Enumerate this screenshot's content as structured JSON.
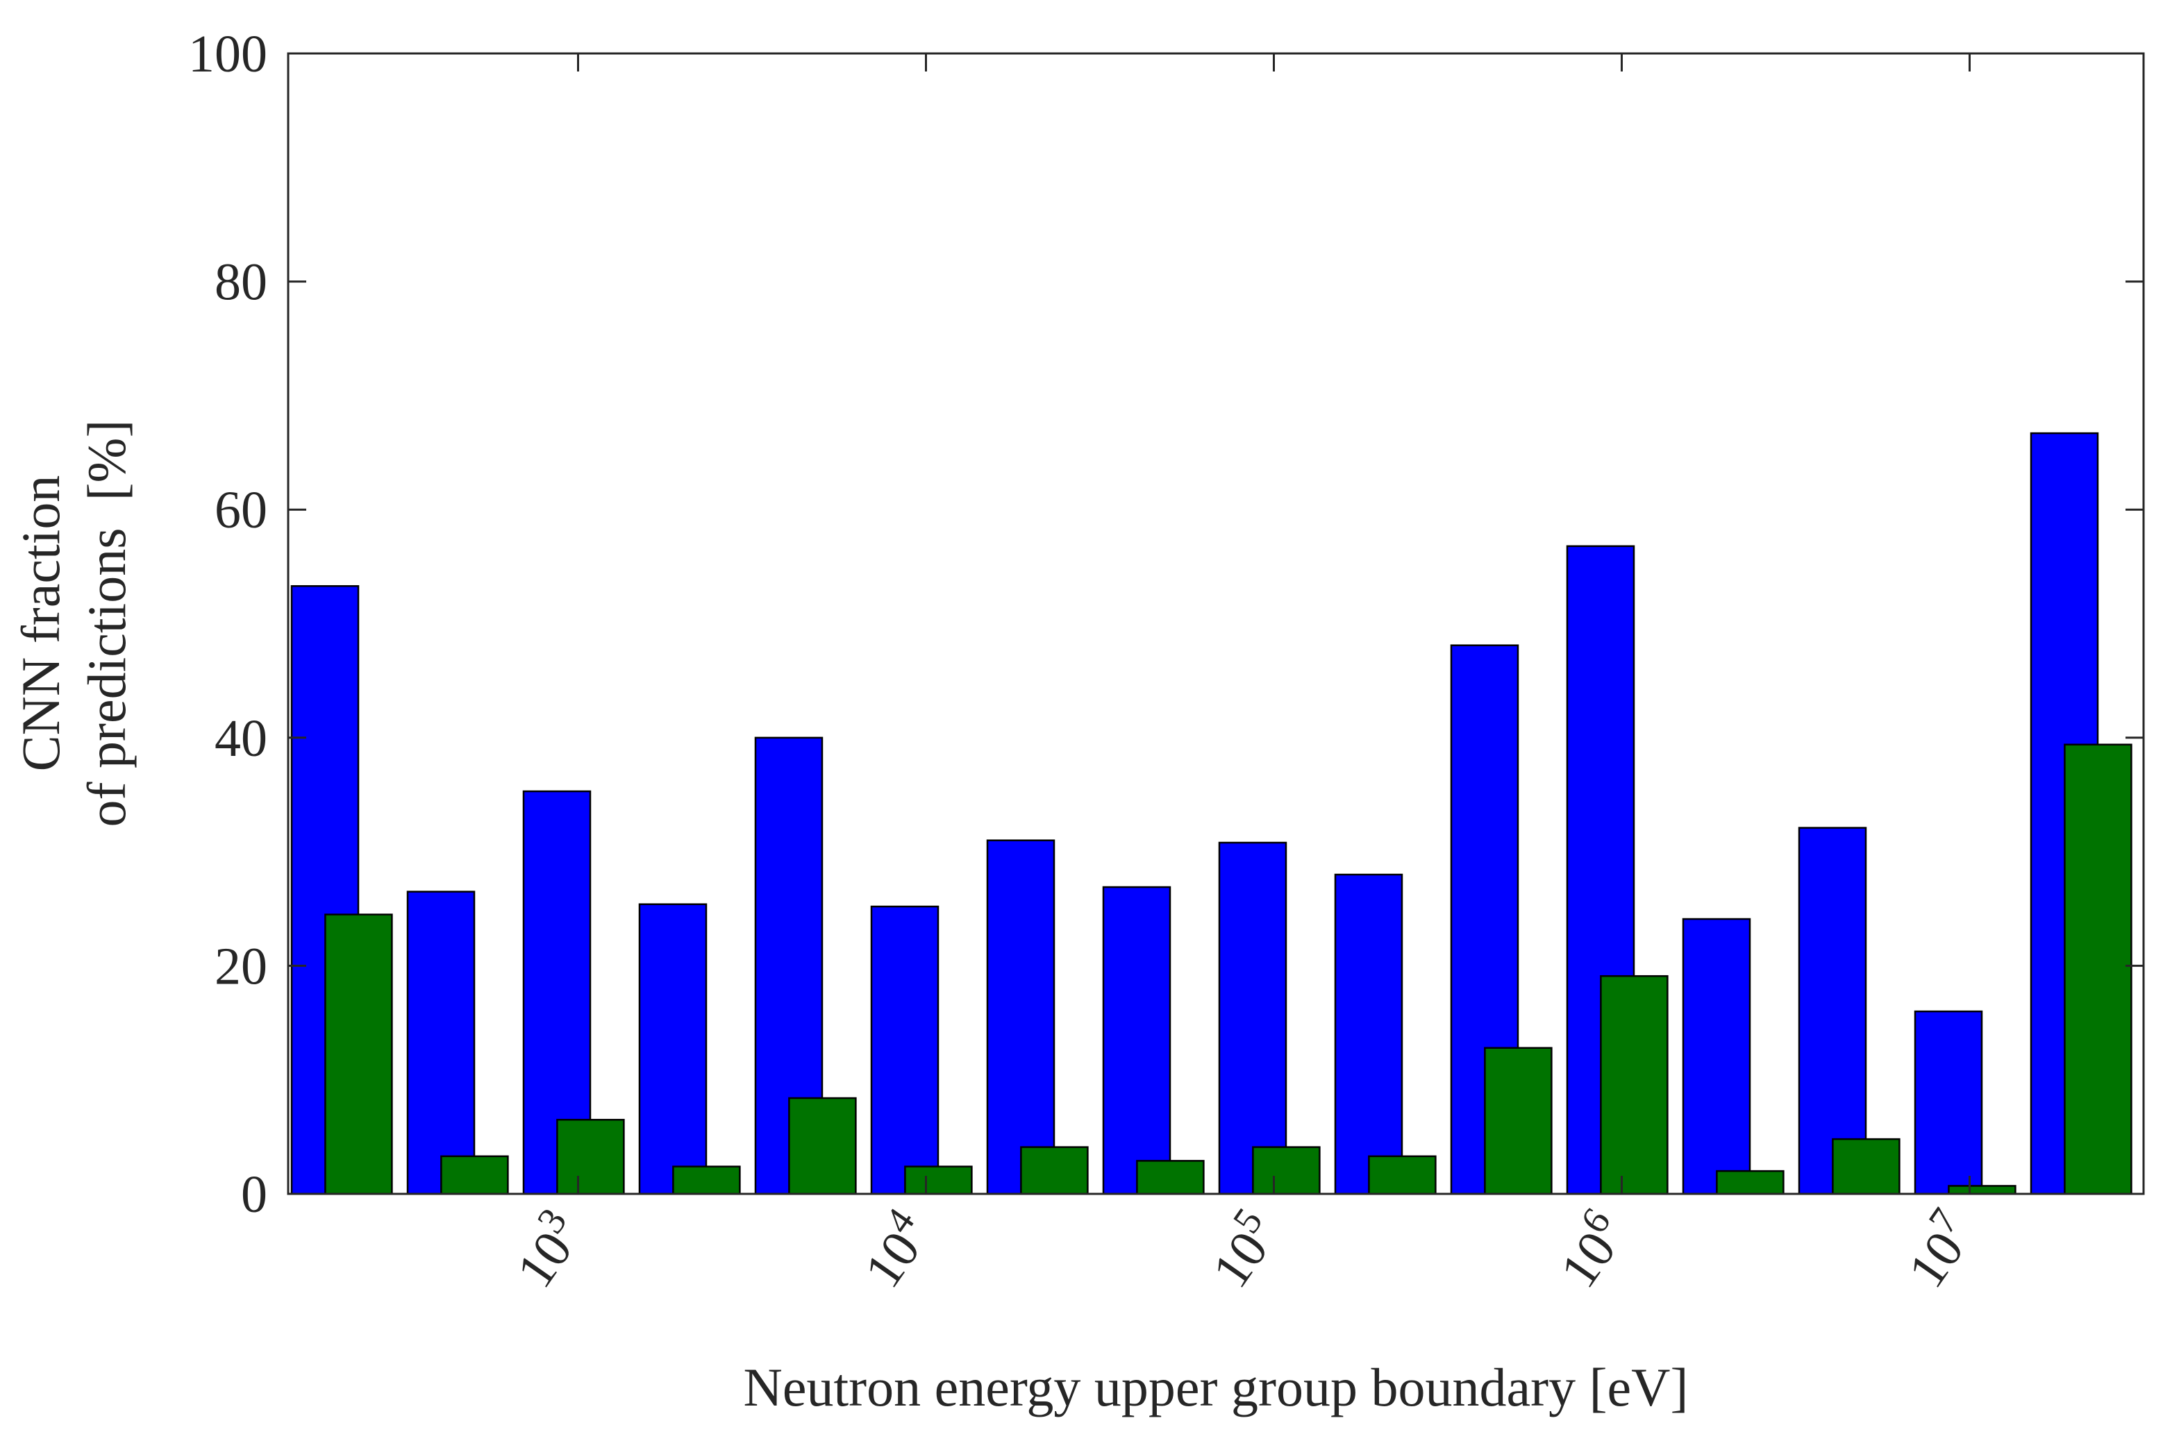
{
  "chart_data": {
    "type": "bar",
    "title": "",
    "xlabel": "Neutron energy upper group boundary [eV]",
    "ylabel_lines": [
      "CNN fraction",
      "of predictions  [%]"
    ],
    "ylim": [
      0,
      100
    ],
    "yticks": [
      0,
      20,
      40,
      60,
      80,
      100
    ],
    "grid": false,
    "legend": "none",
    "xtick_labels": [
      {
        "base": "10",
        "exp": "3",
        "after_group": 2.5
      },
      {
        "base": "10",
        "exp": "4",
        "after_group": 5.5
      },
      {
        "base": "10",
        "exp": "5",
        "after_group": 8.5
      },
      {
        "base": "10",
        "exp": "6",
        "after_group": 11.5
      },
      {
        "base": "10",
        "exp": "7",
        "after_group": 14.5
      }
    ],
    "groups": 16,
    "series": [
      {
        "name": "blue",
        "color": "#0000ff",
        "values": [
          53.3,
          26.5,
          35.3,
          25.4,
          40.0,
          25.2,
          31.0,
          26.9,
          30.8,
          28.0,
          48.1,
          56.8,
          24.1,
          32.1,
          16.0,
          66.7
        ]
      },
      {
        "name": "green",
        "color": "#007300",
        "values": [
          24.5,
          3.3,
          6.5,
          2.4,
          8.4,
          2.4,
          4.1,
          2.9,
          4.1,
          3.3,
          12.8,
          19.1,
          2.0,
          4.8,
          0.7,
          39.4
        ]
      }
    ]
  }
}
